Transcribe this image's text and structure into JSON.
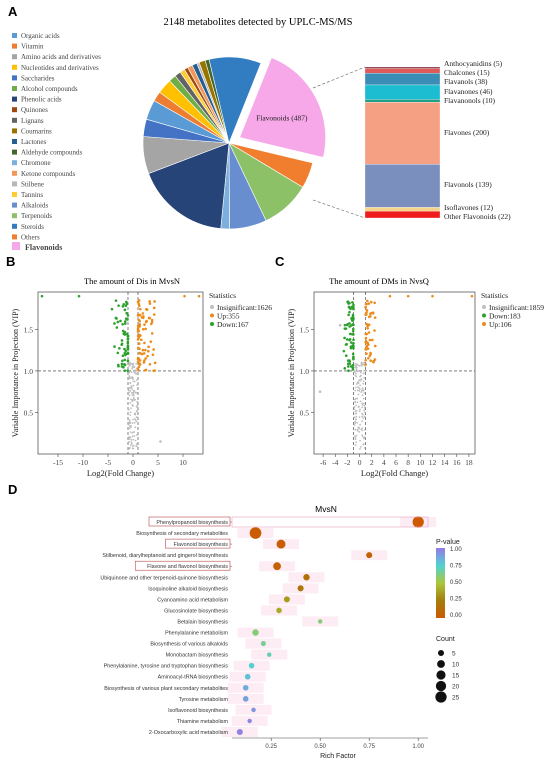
{
  "panels": {
    "a": "A",
    "b": "B",
    "c": "C",
    "d": "D"
  },
  "colors": {
    "organic_acids": "#5b9bd5",
    "vitamin": "#ed7d31",
    "amino_acids": "#a5a5a5",
    "nucleotides": "#ffc000",
    "saccharides": "#4472c4",
    "alcohol": "#70ad47",
    "phenolic": "#264478",
    "quinones": "#9e480e",
    "lignans": "#636363",
    "coumarins": "#997300",
    "lactones": "#255e91",
    "aldehyde": "#43682b",
    "chromone": "#7cafdd",
    "ketone": "#f1975a",
    "stilbene": "#b7b7b7",
    "tannins": "#ffcd33",
    "alkaloids": "#698ed0",
    "terpenoids": "#8cc168",
    "steroids": "#327dc2",
    "others": "#f07e2e",
    "flavonoids": "#f7a8e8",
    "insig": "#bfbfbf",
    "up": "#ed8b1a",
    "down": "#2ca02c"
  },
  "chart_data": [
    {
      "type": "pie",
      "title": "2148 metabolites detected by UPLC-MS/MS",
      "legend": [
        "Organic acids",
        "Vitamin",
        "Amino acids and derivatives",
        "Nucleotides and derivatives",
        "Saccharides",
        "Alcohol compounds",
        "Phenolic acids",
        "Quinones",
        "Lignans",
        "Coumarins",
        "Lactones",
        "Aldehyde compounds",
        "Chromone",
        "Ketone compounds",
        "Stilbene",
        "Tannins",
        "Alkaloids",
        "Terpenoids",
        "Steroids",
        "Others",
        "Flavonoids"
      ],
      "slices": [
        {
          "name": "Flavonoids",
          "value": 487,
          "label": "Flavonoids (487)"
        },
        {
          "name": "Others",
          "value": 105
        },
        {
          "name": "Terpenoids",
          "value": 200
        },
        {
          "name": "Alkaloids",
          "value": 150
        },
        {
          "name": "Chromone",
          "value": 35
        },
        {
          "name": "Phenolic acids",
          "value": 380
        },
        {
          "name": "Amino acids and derivatives",
          "value": 150
        },
        {
          "name": "Saccharides",
          "value": 70
        },
        {
          "name": "Organic acids",
          "value": 80
        },
        {
          "name": "Vitamin",
          "value": 40
        },
        {
          "name": "Nucleotides and derivatives",
          "value": 60
        },
        {
          "name": "Alcohol compounds",
          "value": 30
        },
        {
          "name": "Lignans",
          "value": 25
        },
        {
          "name": "Tannins",
          "value": 20
        },
        {
          "name": "Quinones",
          "value": 15
        },
        {
          "name": "Ketone compounds",
          "value": 20
        },
        {
          "name": "Lactones",
          "value": 20
        },
        {
          "name": "Stilbene",
          "value": 10
        },
        {
          "name": "Coumarins",
          "value": 25
        },
        {
          "name": "Aldehyde compounds",
          "value": 16
        },
        {
          "name": "Steroids",
          "value": 210
        }
      ],
      "breakdown": [
        {
          "label": "Anthocyanidins (5)",
          "value": 5,
          "color": "#7f2d3c"
        },
        {
          "label": "Chalcones (15)",
          "value": 15,
          "color": "#e05a5a"
        },
        {
          "label": "Flavanols (38)",
          "value": 38,
          "color": "#3a8db5"
        },
        {
          "label": "Flavanones (46)",
          "value": 46,
          "color": "#1dbdd1"
        },
        {
          "label": "Flavanonols (10)",
          "value": 10,
          "color": "#1f9f8a"
        },
        {
          "label": "Flavones (200)",
          "value": 200,
          "color": "#f5a083"
        },
        {
          "label": "Flavonols (139)",
          "value": 139,
          "color": "#7b8fbe"
        },
        {
          "label": "Isoflavones (12)",
          "value": 12,
          "color": "#f5d58a"
        },
        {
          "label": "Other Flavonoids (22)",
          "value": 22,
          "color": "#ee1c1c"
        }
      ]
    },
    {
      "type": "scatter",
      "title": "The amount of Dis in MvsN",
      "xlabel": "Log2(Fold Change)",
      "ylabel": "Variable Importance in Projection (VIP)",
      "xlim": [
        -19,
        14
      ],
      "ylim": [
        0,
        1.95
      ],
      "xticks": [
        -15,
        -10,
        -5,
        0,
        5,
        10
      ],
      "yticks": [
        0.5,
        1.0,
        1.5
      ],
      "threshold_y": 1.0,
      "legend_title": "Statistics",
      "series": [
        {
          "name": "Insignificant:1626",
          "key": "insig"
        },
        {
          "name": "Up:355",
          "key": "up"
        },
        {
          "name": "Down:167",
          "key": "down"
        }
      ]
    },
    {
      "type": "scatter",
      "title": "The amount of DMs in NvsQ",
      "xlabel": "Log2(Fold Change)",
      "ylabel": "Variable Importance in Projection (VIP)",
      "xlim": [
        -7.5,
        19
      ],
      "ylim": [
        0,
        1.95
      ],
      "xticks": [
        -6,
        -4,
        -2,
        0,
        2,
        4,
        6,
        8,
        10,
        12,
        14,
        16,
        18
      ],
      "yticks": [
        0.5,
        1.0,
        1.5
      ],
      "threshold_y": 1.0,
      "legend_title": "Statistics",
      "series": [
        {
          "name": "Insignificant:1859",
          "key": "insig"
        },
        {
          "name": "Down:183",
          "key": "down"
        },
        {
          "name": "Up:106",
          "key": "up"
        }
      ]
    },
    {
      "type": "scatter",
      "title": "MvsN",
      "xlabel": "Rich Factor",
      "xlim": [
        0.05,
        1.05
      ],
      "xticks": [
        0.25,
        0.5,
        0.75,
        1.0
      ],
      "xticklabels": [
        "0.25",
        "0.50",
        "0.75",
        "1.00"
      ],
      "pvalue_legend": {
        "title": "P-value",
        "ticks": [
          "1.00",
          "0.75",
          "0.50",
          "0.25",
          "0.00"
        ]
      },
      "count_legend": {
        "title": "Count",
        "values": [
          5,
          10,
          15,
          20,
          25
        ]
      },
      "pathways": [
        {
          "name": "Phenylpropanoid biosynthesis",
          "rich": 1.0,
          "count": 25,
          "p": 0.0,
          "boxed": true
        },
        {
          "name": "Biosynthesis of secondary metabolites",
          "rich": 0.17,
          "count": 27,
          "p": 0.02,
          "boxed": false
        },
        {
          "name": "Flavonoid biosynthesis",
          "rich": 0.3,
          "count": 14,
          "p": 0.02,
          "boxed": true
        },
        {
          "name": "Stilbenoid, diarylheptanoid and gingerol biosynthesis",
          "rich": 0.75,
          "count": 5,
          "p": 0.05,
          "boxed": false
        },
        {
          "name": "Flavone and flavonol biosynthesis",
          "rich": 0.28,
          "count": 10,
          "p": 0.05,
          "boxed": true
        },
        {
          "name": "Ubiquinone and other terpenoid-quinone biosynthesis",
          "rich": 0.43,
          "count": 6,
          "p": 0.15,
          "boxed": false
        },
        {
          "name": "Isoquinoline alkaloid biosynthesis",
          "rich": 0.4,
          "count": 5,
          "p": 0.2,
          "boxed": false
        },
        {
          "name": "Cyanoamino acid metabolism",
          "rich": 0.33,
          "count": 5,
          "p": 0.35,
          "boxed": false
        },
        {
          "name": "Glucosinolate biosynthesis",
          "rich": 0.29,
          "count": 4,
          "p": 0.4,
          "boxed": false
        },
        {
          "name": "Betalain biosynthesis",
          "rich": 0.5,
          "count": 2,
          "p": 0.6,
          "boxed": false
        },
        {
          "name": "Phenylalanine metabolism",
          "rich": 0.17,
          "count": 6,
          "p": 0.6,
          "boxed": false
        },
        {
          "name": "Biosynthesis of various alkaloids",
          "rich": 0.21,
          "count": 3,
          "p": 0.65,
          "boxed": false
        },
        {
          "name": "Monobactam biosynthesis",
          "rich": 0.24,
          "count": 2,
          "p": 0.7,
          "boxed": false
        },
        {
          "name": "Phenylalanine, tyrosine and tryptophan biosynthesis",
          "rich": 0.15,
          "count": 4,
          "p": 0.75,
          "boxed": false
        },
        {
          "name": "Aminoacyl-tRNA biosynthesis",
          "rich": 0.13,
          "count": 4,
          "p": 0.8,
          "boxed": false
        },
        {
          "name": "Biosynthesis of various plant secondary metabolites",
          "rich": 0.12,
          "count": 4,
          "p": 0.85,
          "boxed": false
        },
        {
          "name": "Tyrosine metabolism",
          "rich": 0.12,
          "count": 4,
          "p": 0.88,
          "boxed": false
        },
        {
          "name": "Isoflavonoid biosynthesis",
          "rich": 0.16,
          "count": 2,
          "p": 0.92,
          "boxed": false
        },
        {
          "name": "Thiamine metabolism",
          "rich": 0.14,
          "count": 2,
          "p": 0.95,
          "boxed": false
        },
        {
          "name": "2-Oxocarboxylic acid metabolism",
          "rich": 0.09,
          "count": 5,
          "p": 0.97,
          "boxed": false
        }
      ]
    }
  ]
}
